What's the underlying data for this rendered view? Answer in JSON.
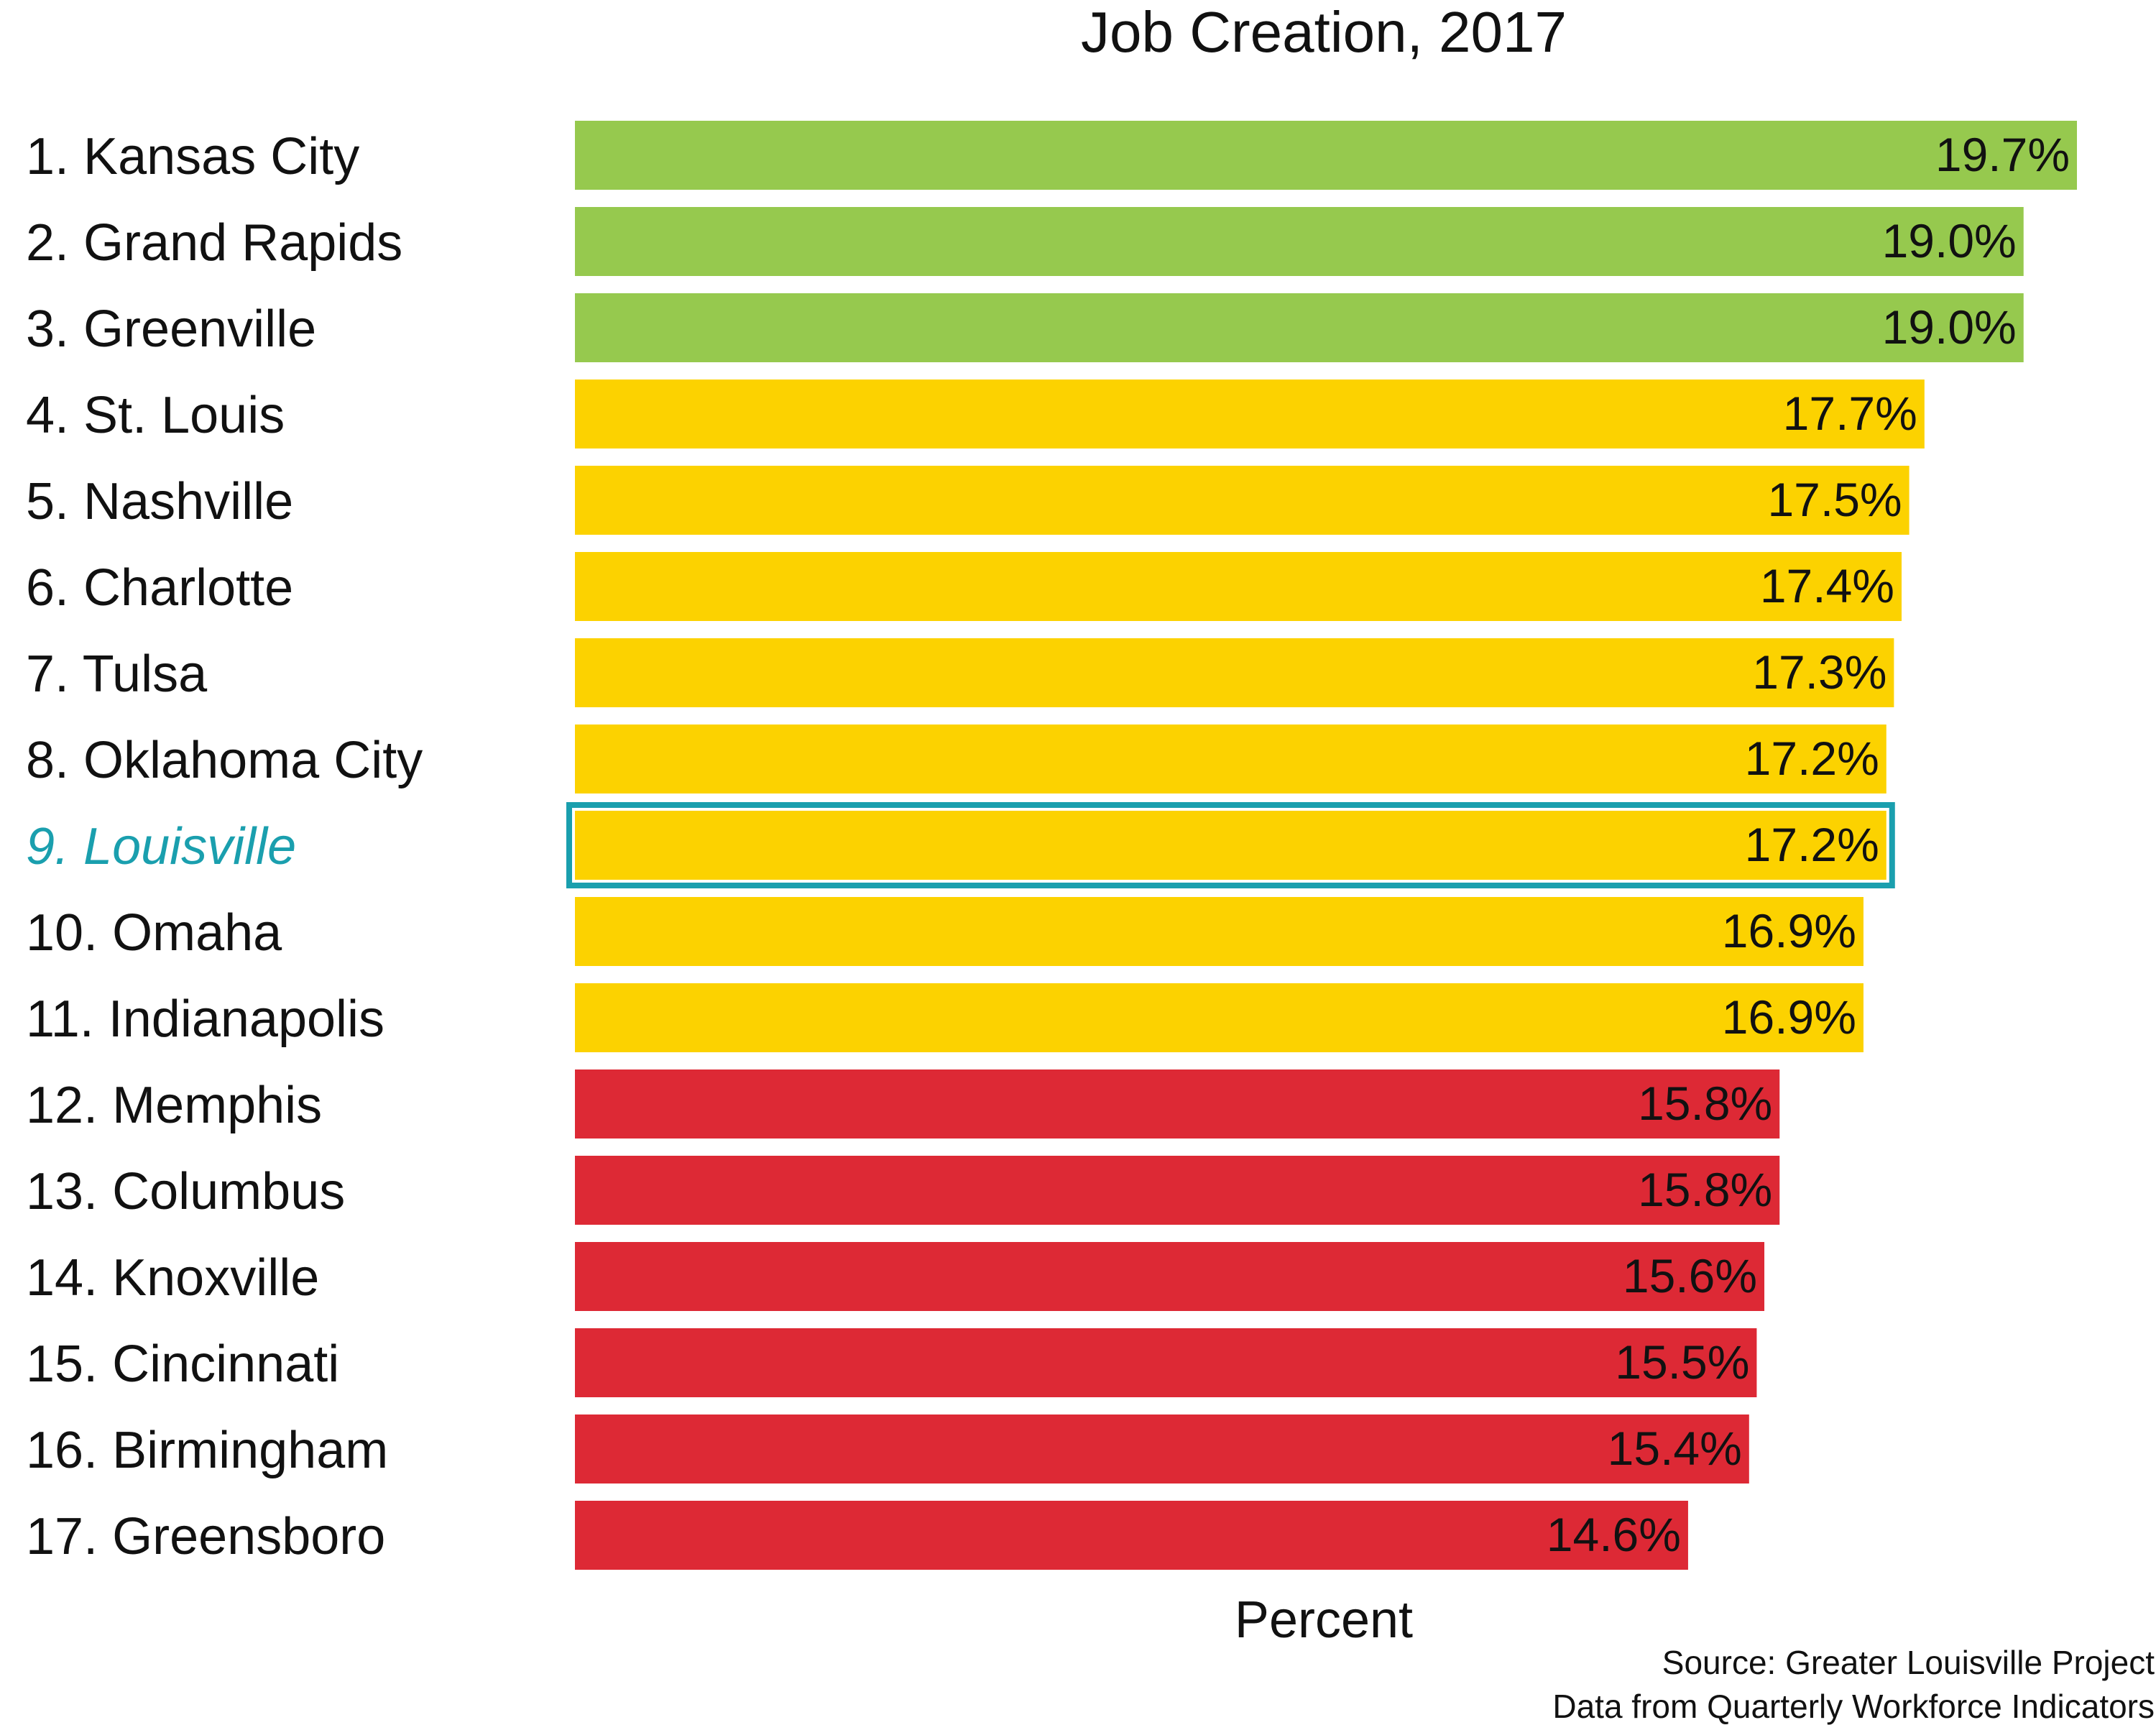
{
  "chart_data": {
    "type": "bar",
    "orientation": "horizontal",
    "title": "Job Creation, 2017",
    "xlabel": "Percent",
    "ylabel": "",
    "grid": false,
    "legend": "none",
    "categories": [
      "1. Kansas City",
      "2. Grand Rapids",
      "3. Greenville",
      "4. St. Louis",
      "5. Nashville",
      "6. Charlotte",
      "7. Tulsa",
      "8. Oklahoma City",
      "9. Louisville",
      "10. Omaha",
      "11. Indianapolis",
      "12. Memphis",
      "13. Columbus",
      "14. Knoxville",
      "15. Cincinnati",
      "16. Birmingham",
      "17. Greensboro"
    ],
    "values": [
      19.7,
      19.0,
      19.0,
      17.7,
      17.5,
      17.4,
      17.3,
      17.2,
      17.2,
      16.9,
      16.9,
      15.8,
      15.8,
      15.6,
      15.5,
      15.4,
      14.6
    ],
    "value_labels": [
      "19.7%",
      "19.0%",
      "19.0%",
      "17.7%",
      "17.5%",
      "17.4%",
      "17.3%",
      "17.2%",
      "17.2%",
      "16.9%",
      "16.9%",
      "15.8%",
      "15.8%",
      "15.6%",
      "15.5%",
      "15.4%",
      "14.6%"
    ],
    "tiers": [
      "top",
      "top",
      "top",
      "mid",
      "mid",
      "mid",
      "mid",
      "mid",
      "mid",
      "mid",
      "mid",
      "bottom",
      "bottom",
      "bottom",
      "bottom",
      "bottom",
      "bottom"
    ],
    "highlight_index": 8,
    "xlim": [
      0,
      19.7
    ],
    "colors": {
      "top": "#96c94e",
      "mid": "#fcd200",
      "bottom": "#dd2935",
      "highlight": "#1a9fae",
      "text": "#111111"
    }
  },
  "source": {
    "line1": "Source: Greater Louisville Project",
    "line2": "Data from Quarterly Workforce Indicators"
  }
}
